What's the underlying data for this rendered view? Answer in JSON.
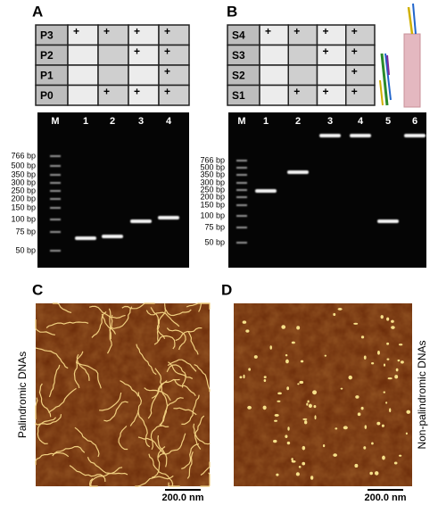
{
  "panel_a": {
    "label": "A",
    "table": [
      {
        "name": "P3",
        "cells": [
          "+",
          "+",
          "+",
          "+"
        ]
      },
      {
        "name": "P2",
        "cells": [
          null,
          null,
          "+",
          "+"
        ]
      },
      {
        "name": "P1",
        "cells": [
          null,
          null,
          null,
          "+"
        ]
      },
      {
        "name": "P0",
        "cells": [
          null,
          "+",
          "+",
          "+"
        ]
      }
    ],
    "gel": {
      "lanes": [
        "M",
        "1",
        "2",
        "3",
        "4"
      ],
      "ladder": [
        "766 bp",
        "500 bp",
        "350 bp",
        "300 bp",
        "250 bp",
        "200 bp",
        "150 bp",
        "100 bp",
        "75 bp",
        "50 bp"
      ]
    }
  },
  "panel_b": {
    "label": "B",
    "table": [
      {
        "name": "S4",
        "cells": [
          "+",
          "+",
          "+",
          "+"
        ]
      },
      {
        "name": "S3",
        "cells": [
          null,
          null,
          "+",
          "+"
        ]
      },
      {
        "name": "S2",
        "cells": [
          null,
          null,
          null,
          "+"
        ]
      },
      {
        "name": "S1",
        "cells": [
          null,
          "+",
          "+",
          "+"
        ]
      }
    ],
    "gel": {
      "lanes": [
        "M",
        "1",
        "2",
        "3",
        "4",
        "5",
        "6"
      ],
      "ladder": [
        "766 bp",
        "500 bp",
        "350 bp",
        "300 bp",
        "250 bp",
        "200 bp",
        "150 bp",
        "100 bp",
        "75 bp",
        "50 bp"
      ]
    }
  },
  "panel_c": {
    "label": "C",
    "caption": "Palindromic DNAs",
    "scale_bar": "200.0 nm"
  },
  "panel_d": {
    "label": "D",
    "caption": "Non-palindromic DNAs",
    "scale_bar": "200.0 nm"
  }
}
